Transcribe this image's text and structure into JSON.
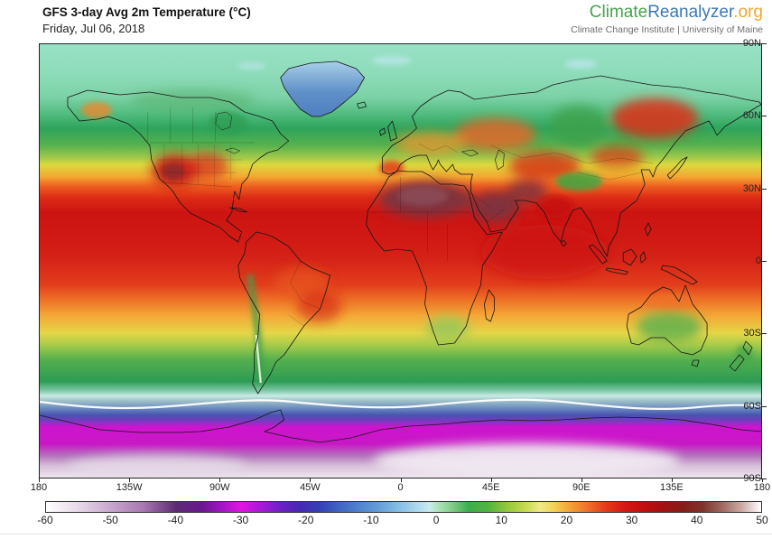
{
  "header": {
    "title": "GFS 3-day Avg 2m Temperature (°C)",
    "date": "Friday, Jul 06, 2018",
    "logo": {
      "part1": "Climate",
      "part2": "Reanalyzer",
      "part3": ".org",
      "color1": "#46a24a",
      "color2": "#3a78b8",
      "color3": "#f2a62e",
      "tagline": "Climate Change Institute | University of Maine",
      "tagline_color": "#6e6e6e"
    }
  },
  "map": {
    "projection": "equirectangular",
    "lat_labels": [
      "90N",
      "60N",
      "30N",
      "0",
      "30S",
      "60S",
      "90S"
    ],
    "lon_labels": [
      "180",
      "135W",
      "90W",
      "45W",
      "0",
      "45E",
      "90E",
      "135E",
      "180"
    ],
    "zonal_gradient": [
      {
        "lat": 90,
        "color": "#98e0c6"
      },
      {
        "lat": 78,
        "color": "#8edcba"
      },
      {
        "lat": 68,
        "color": "#7cd2a6"
      },
      {
        "lat": 61,
        "color": "#50bc7e"
      },
      {
        "lat": 55,
        "color": "#2ea45c"
      },
      {
        "lat": 48,
        "color": "#56b14e"
      },
      {
        "lat": 43,
        "color": "#9fc94c"
      },
      {
        "lat": 40,
        "color": "#dbd93e"
      },
      {
        "lat": 35,
        "color": "#f3a832"
      },
      {
        "lat": 31,
        "color": "#ee5e20"
      },
      {
        "lat": 26,
        "color": "#dc2a16"
      },
      {
        "lat": 20,
        "color": "#cc1412"
      },
      {
        "lat": 8,
        "color": "#d11a14"
      },
      {
        "lat": 0,
        "color": "#d62418"
      },
      {
        "lat": -10,
        "color": "#e23e1c"
      },
      {
        "lat": -16,
        "color": "#ee7026"
      },
      {
        "lat": -23,
        "color": "#f4aa38"
      },
      {
        "lat": -30,
        "color": "#e5d648"
      },
      {
        "lat": -35,
        "color": "#a6cb4a"
      },
      {
        "lat": -41,
        "color": "#55b04e"
      },
      {
        "lat": -50,
        "color": "#2d9c54"
      },
      {
        "lat": -54,
        "color": "#82c9ab"
      },
      {
        "lat": -56,
        "color": "#c9ece4"
      },
      {
        "lat": -58,
        "color": "#9fc2c8"
      },
      {
        "lat": -61,
        "color": "#6e8ec0"
      },
      {
        "lat": -64,
        "color": "#4754b0"
      },
      {
        "lat": -66.5,
        "color": "#7a3ac0"
      },
      {
        "lat": -69,
        "color": "#ce14ce"
      },
      {
        "lat": -76,
        "color": "#c818c6"
      },
      {
        "lat": -81,
        "color": "#b374bc"
      },
      {
        "lat": -85,
        "color": "#d6bed8"
      },
      {
        "lat": -90,
        "color": "#eee6ee"
      }
    ]
  },
  "colorbar": {
    "unit": "°C",
    "min": -60,
    "max": 50,
    "ticks": [
      "-60",
      "-50",
      "-40",
      "-30",
      "-20",
      "-10",
      "0",
      "10",
      "20",
      "30",
      "40",
      "50"
    ],
    "stops": [
      {
        "v": -60,
        "c": "#ffffff"
      },
      {
        "v": -55,
        "c": "#e7d8e9"
      },
      {
        "v": -50,
        "c": "#c9a6ce"
      },
      {
        "v": -45,
        "c": "#a877b2"
      },
      {
        "v": -40,
        "c": "#5e2a74"
      },
      {
        "v": -36,
        "c": "#69188e"
      },
      {
        "v": -33,
        "c": "#a114c4"
      },
      {
        "v": -30,
        "c": "#e214e2"
      },
      {
        "v": -27,
        "c": "#a81ad8"
      },
      {
        "v": -24,
        "c": "#6e20c8"
      },
      {
        "v": -21,
        "c": "#4629b4"
      },
      {
        "v": -18,
        "c": "#3340b6"
      },
      {
        "v": -15,
        "c": "#3f63c4"
      },
      {
        "v": -12,
        "c": "#4f82ce"
      },
      {
        "v": -9,
        "c": "#649cd8"
      },
      {
        "v": -6,
        "c": "#82bce4"
      },
      {
        "v": -3,
        "c": "#abd8ec"
      },
      {
        "v": -1,
        "c": "#c6ecec"
      },
      {
        "v": 0,
        "c": "#b4e6c4"
      },
      {
        "v": 2,
        "c": "#8cd292"
      },
      {
        "v": 5,
        "c": "#3cae4e"
      },
      {
        "v": 8,
        "c": "#52b43e"
      },
      {
        "v": 11,
        "c": "#96c83c"
      },
      {
        "v": 14,
        "c": "#ccdc54"
      },
      {
        "v": 16,
        "c": "#eeea86"
      },
      {
        "v": 18,
        "c": "#f2d458"
      },
      {
        "v": 20,
        "c": "#f4ae3c"
      },
      {
        "v": 23,
        "c": "#f0762a"
      },
      {
        "v": 26,
        "c": "#e63c1a"
      },
      {
        "v": 29,
        "c": "#d61812"
      },
      {
        "v": 32,
        "c": "#c00e0e"
      },
      {
        "v": 35,
        "c": "#a01212"
      },
      {
        "v": 38,
        "c": "#841e18"
      },
      {
        "v": 41,
        "c": "#7e332c"
      },
      {
        "v": 44,
        "c": "#a06a62"
      },
      {
        "v": 47,
        "c": "#cbaaa2"
      },
      {
        "v": 50,
        "c": "#ffffff"
      }
    ]
  }
}
